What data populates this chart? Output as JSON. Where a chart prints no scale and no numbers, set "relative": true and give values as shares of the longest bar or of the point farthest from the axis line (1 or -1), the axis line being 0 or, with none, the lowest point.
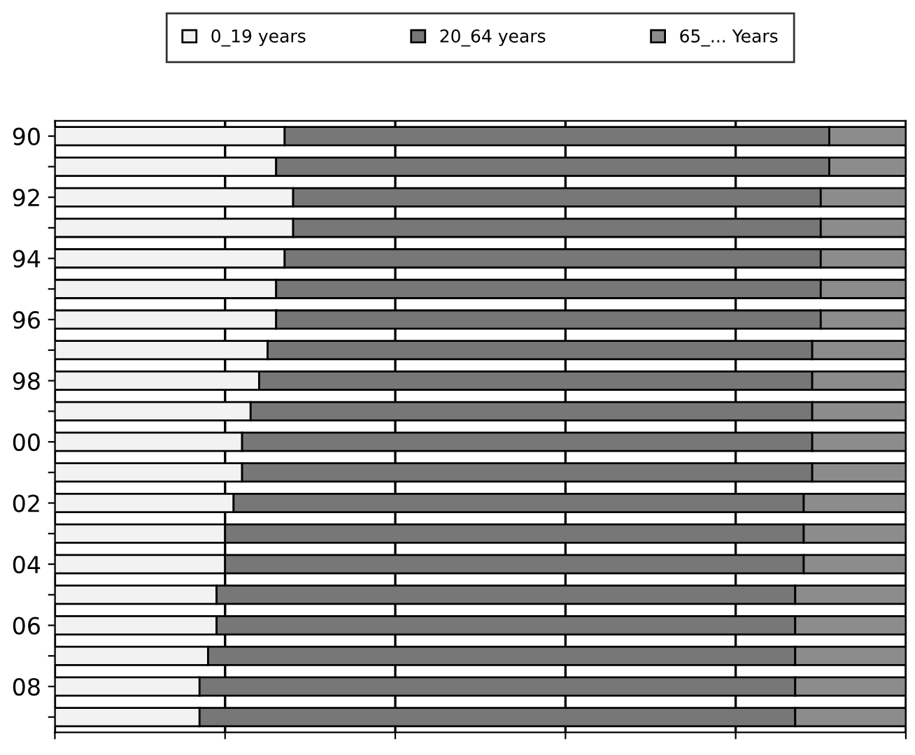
{
  "chart_data": {
    "type": "bar",
    "orientation": "horizontal",
    "stacked": true,
    "relative": true,
    "categories": [
      "90",
      null,
      "92",
      null,
      "94",
      null,
      "96",
      null,
      "98",
      null,
      "00",
      null,
      "02",
      null,
      "04",
      null,
      "06",
      null,
      "08",
      null
    ],
    "series": [
      {
        "name": "0_19 years",
        "color": "#f2f2f2",
        "values": [
          0.27,
          0.26,
          0.28,
          0.28,
          0.27,
          0.26,
          0.26,
          0.25,
          0.24,
          0.23,
          0.22,
          0.22,
          0.21,
          0.2,
          0.2,
          0.19,
          0.19,
          0.18,
          0.17,
          0.17
        ]
      },
      {
        "name": "20_64 years",
        "color": "#777777",
        "values": [
          0.64,
          0.65,
          0.62,
          0.62,
          0.63,
          0.64,
          0.64,
          0.64,
          0.65,
          0.66,
          0.67,
          0.67,
          0.67,
          0.68,
          0.68,
          0.68,
          0.68,
          0.69,
          0.7,
          0.7
        ]
      },
      {
        "name": "65_... Years",
        "color": "#8c8c8c",
        "values": [
          0.09,
          0.09,
          0.1,
          0.1,
          0.1,
          0.1,
          0.1,
          0.11,
          0.11,
          0.11,
          0.11,
          0.11,
          0.12,
          0.12,
          0.12,
          0.13,
          0.13,
          0.13,
          0.13,
          0.13
        ]
      }
    ],
    "grid": "x",
    "legend": "top"
  }
}
